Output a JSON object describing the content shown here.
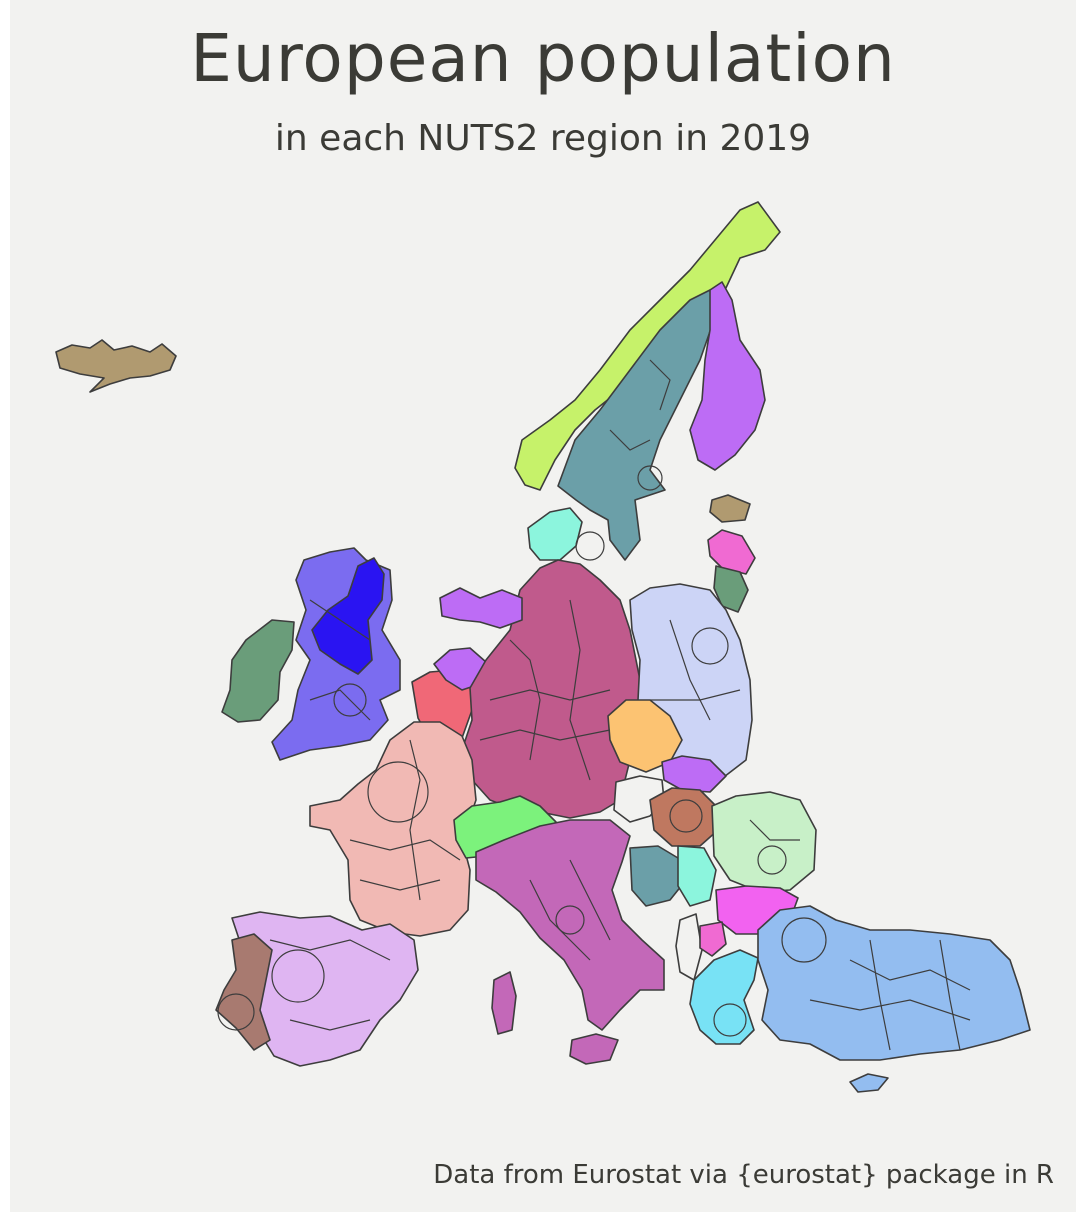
{
  "title": "European population",
  "subtitle": "in each NUTS2 region in 2019",
  "caption": "Data from Eurostat via {eurostat} package in R",
  "map": {
    "type": "choropleth-cartogram",
    "colors": {
      "background": "#f2f2f0",
      "iceland": "#b09a70",
      "norway": "#c6f26a",
      "sweden": "#6b9fa8",
      "finland": "#bd6cf5",
      "uk": "#7b6cf0",
      "scotland": "#2a14f2",
      "ireland": "#6a9d7a",
      "germany": "#c05a8c",
      "france": "#f1b9b4",
      "spain": "#dfb5f2",
      "portugal": "#a87a70",
      "italy": "#c368b8",
      "poland": "#ccd4f6",
      "turkey": "#93bdf0",
      "benelux": "#f06877",
      "denmark": "#8cf5dd",
      "switzerland": "#7cf27c",
      "czechia": "#fcc372",
      "hungary": "#bf7860",
      "romania": "#c8f0c8",
      "bulgaria": "#f262f0",
      "greece": "#78e2f5",
      "latvia": "#f06ad2"
    }
  }
}
